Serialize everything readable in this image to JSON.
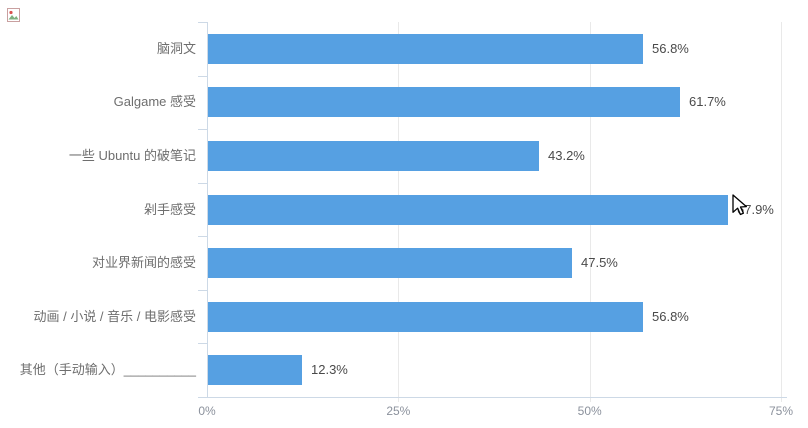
{
  "chart_data": {
    "type": "bar",
    "orientation": "horizontal",
    "title": "",
    "xlabel": "",
    "ylabel": "",
    "categories": [
      "脑洞文",
      "Galgame 感受",
      "一些 Ubuntu 的破笔记",
      "剁手感受",
      "对业界新闻的感受",
      "动画 / 小说 / 音乐 / 电影感受",
      "其他（手动输入）__________"
    ],
    "values": [
      56.8,
      61.7,
      43.2,
      67.9,
      47.5,
      56.8,
      12.3
    ],
    "value_labels": [
      "56.8%",
      "61.7%",
      "43.2%",
      "67.9%",
      "47.5%",
      "56.8%",
      "12.3%"
    ],
    "xlim": [
      0,
      75
    ],
    "x_tick_values": [
      0,
      25,
      50,
      75
    ],
    "x_tick_labels": [
      "0%",
      "25%",
      "50%",
      "75%"
    ],
    "grid": true,
    "legend": null
  },
  "colors": {
    "bar": "#56a0e2",
    "axis_line": "#cdd9e6",
    "gridline": "#e9e9e9",
    "category_label": "#6e6e6e",
    "value_label": "#4a4a4a",
    "tick_label": "#8b919c"
  },
  "icons": {
    "broken_image_icon": "broken-image placeholder",
    "mouse_cursor": "arrow pointer over 剁手感受 value label"
  }
}
